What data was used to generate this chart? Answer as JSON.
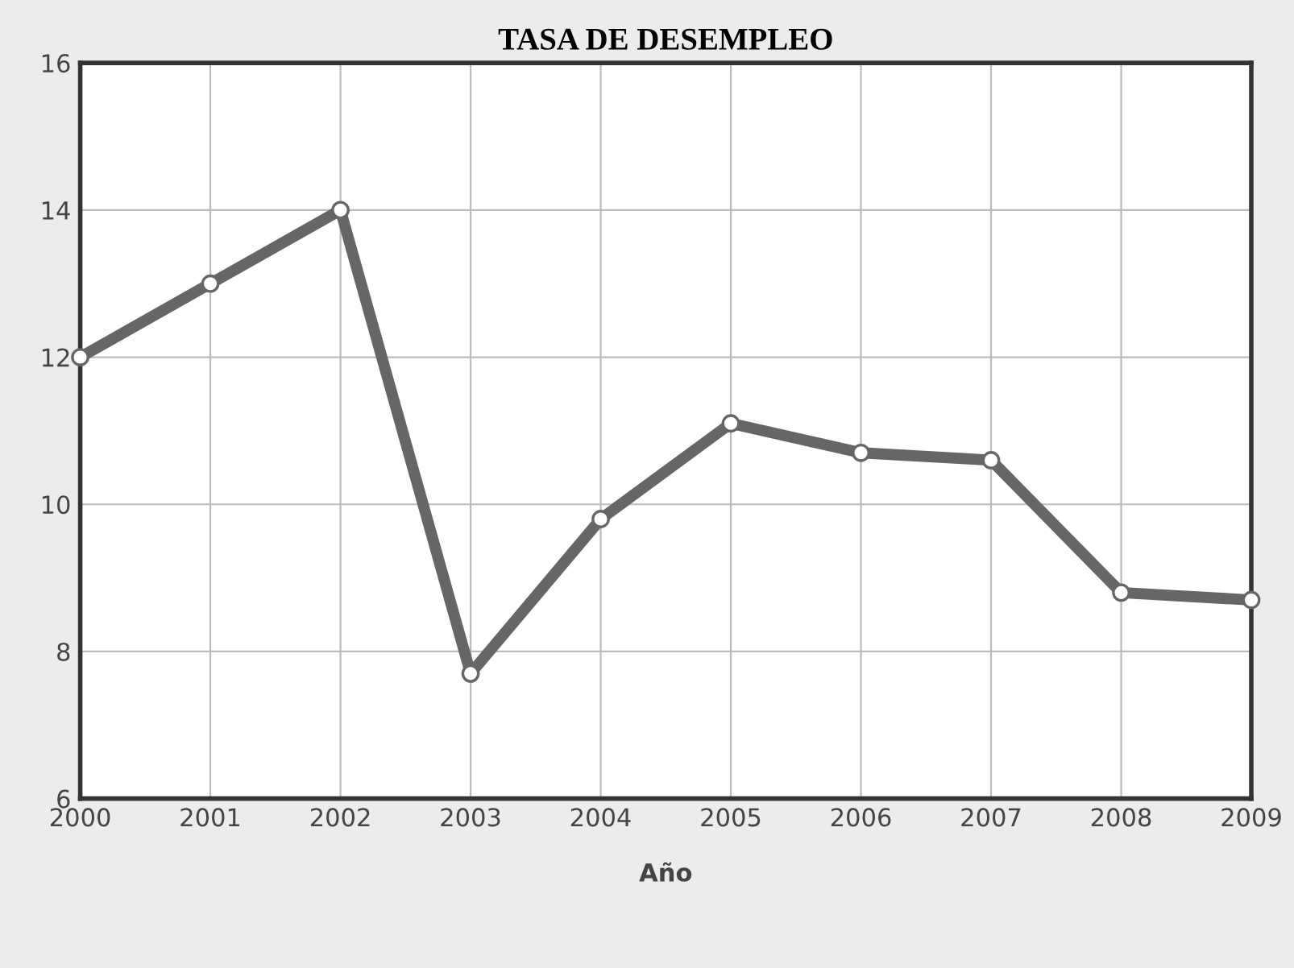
{
  "chart_data": {
    "type": "line",
    "title": "TASA DE DESEMPLEO",
    "xlabel": "Año",
    "x": [
      2000,
      2001,
      2002,
      2003,
      2004,
      2005,
      2006,
      2007,
      2008,
      2009
    ],
    "series": [
      {
        "color": "#666666",
        "values": [
          12,
          13,
          14,
          7.7,
          9.8,
          11.1,
          10.7,
          10.6,
          8.8,
          8.7
        ]
      }
    ],
    "xlim": [
      2000,
      2009
    ],
    "xticks": [
      2000,
      2001,
      2002,
      2003,
      2004,
      2005,
      2006,
      2007,
      2008,
      2009
    ],
    "ylim": [
      6,
      16
    ],
    "yticks": [
      6,
      8,
      10,
      12,
      14,
      16
    ],
    "grid": true,
    "marker": "circle",
    "line_style": "solid"
  }
}
